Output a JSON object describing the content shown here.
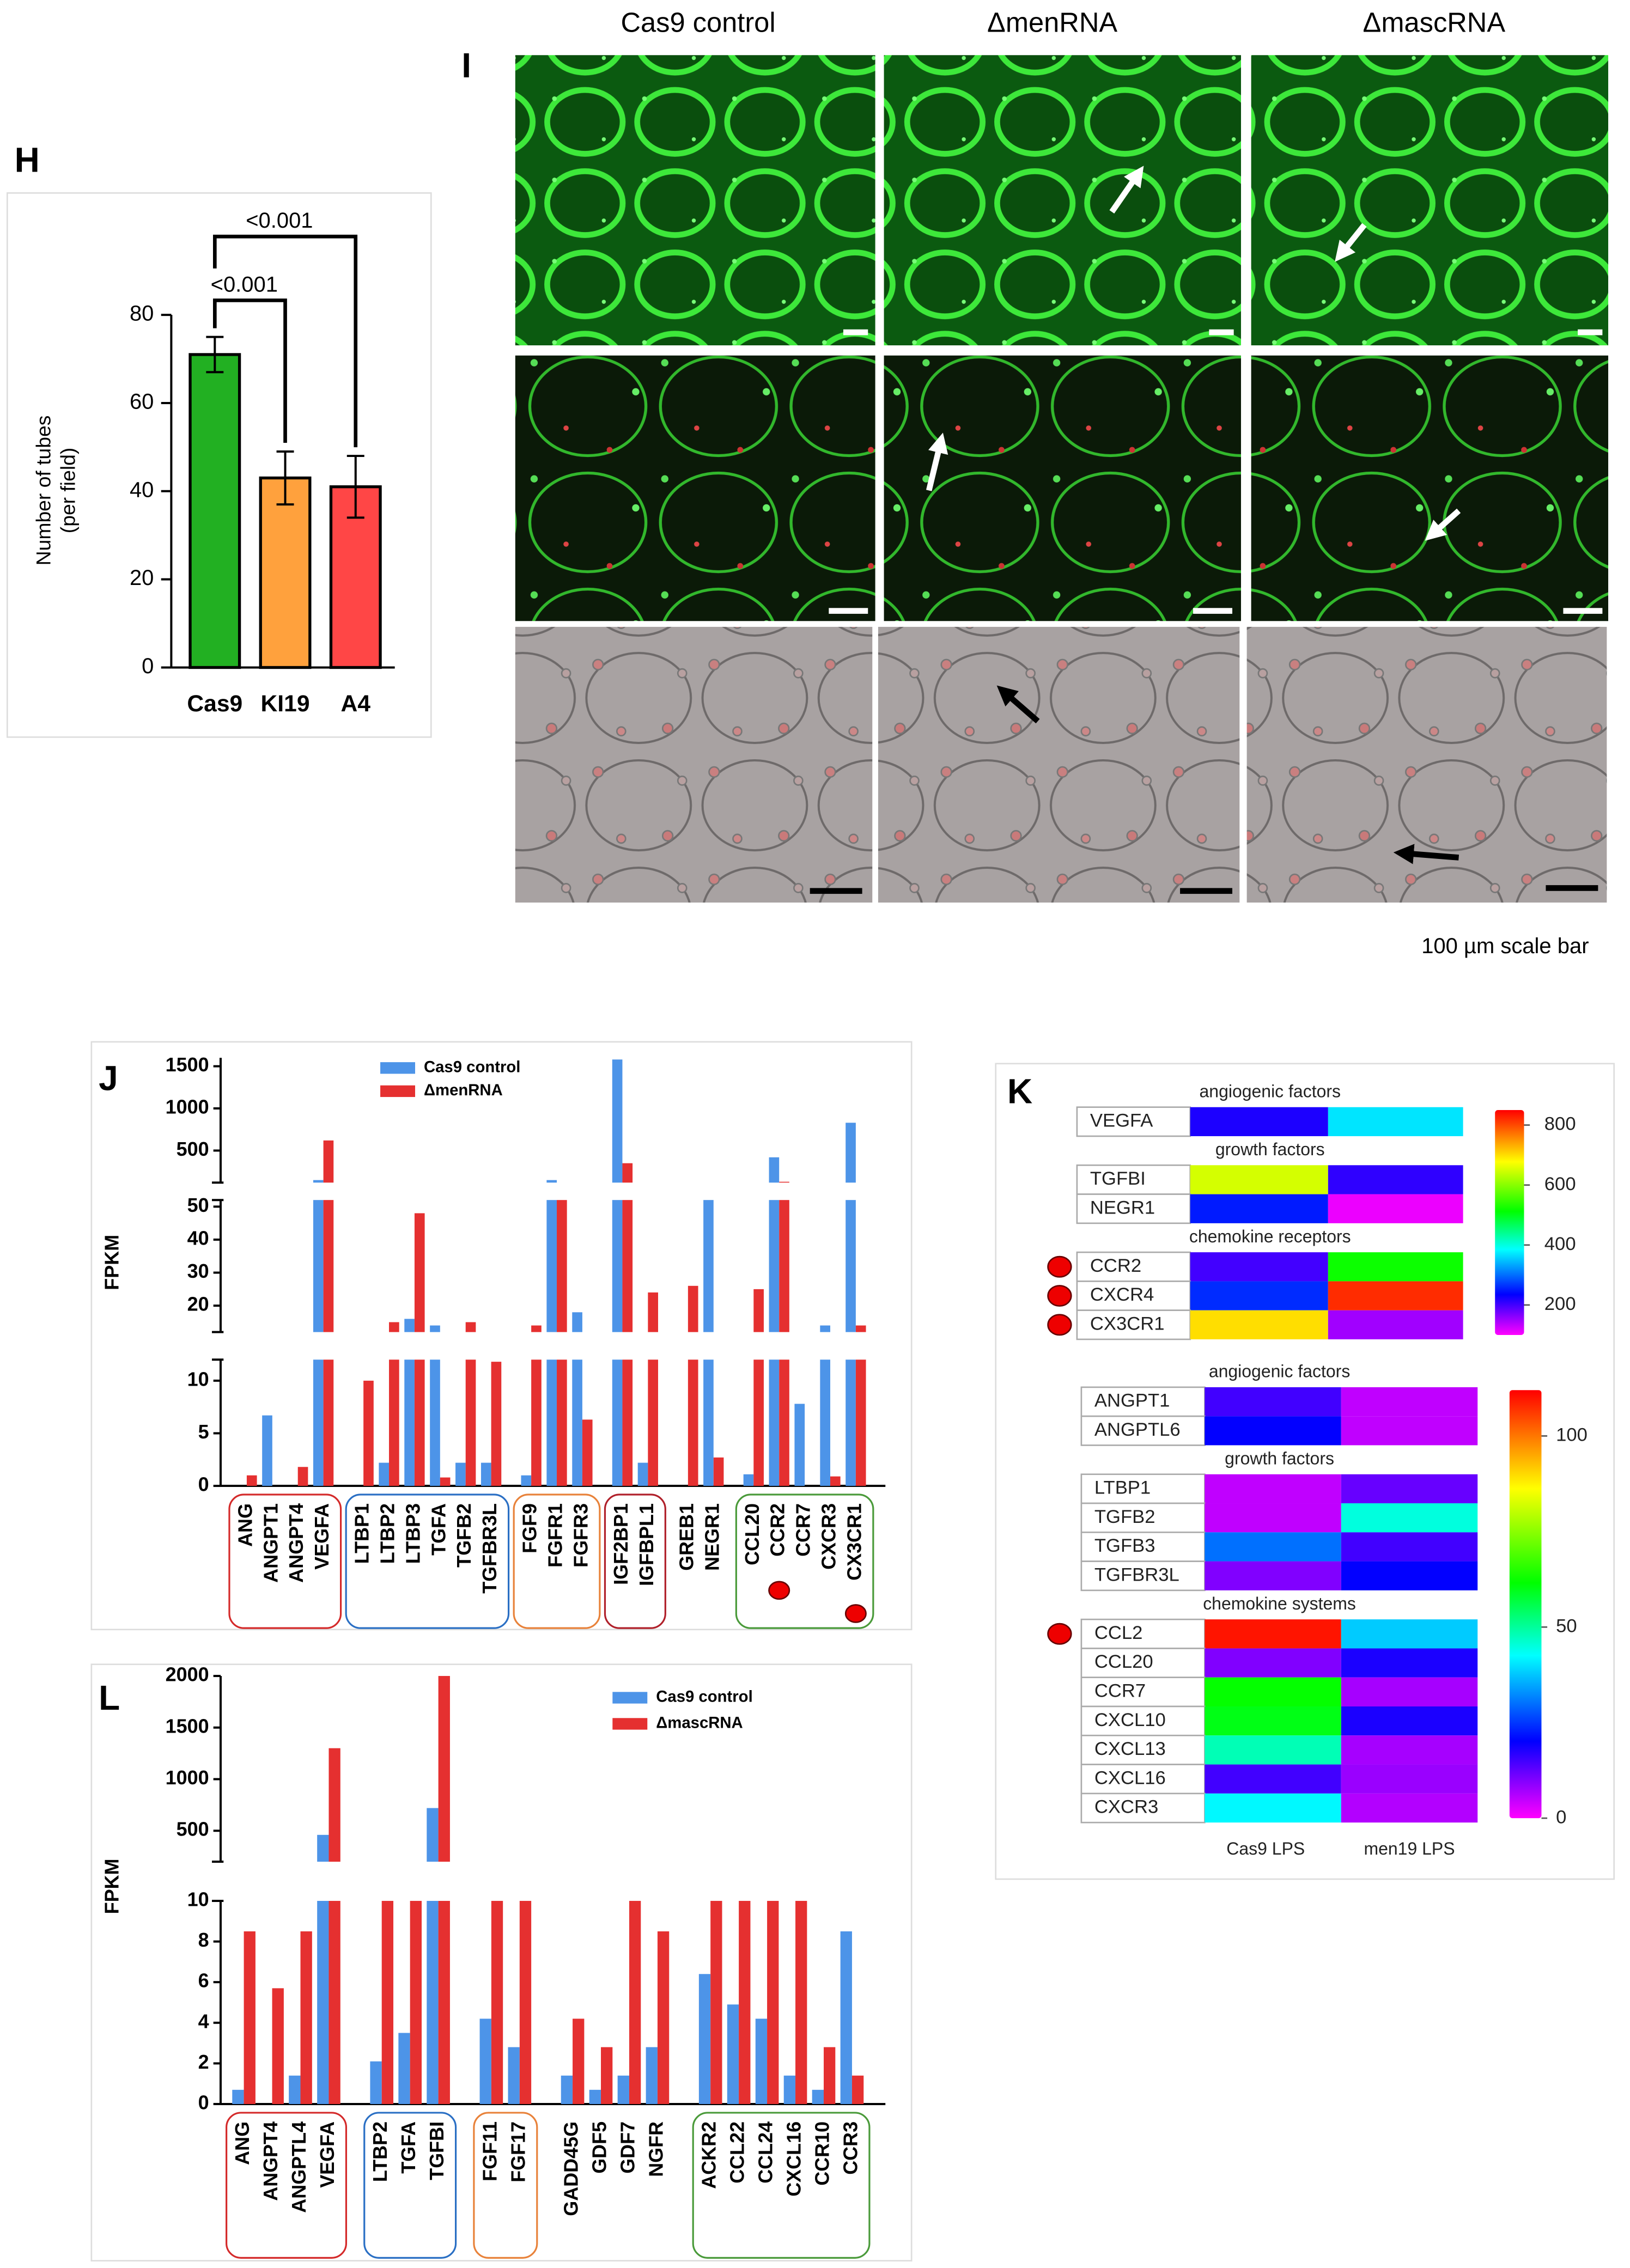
{
  "image_panel": {
    "letter": "I",
    "columns": [
      "Cas9 control",
      "ΔmenRNA",
      "ΔmascRNA"
    ],
    "note": "100 µm scale bar"
  },
  "chart_data": [
    {
      "type": "bar",
      "panel": "H",
      "ylabel": [
        "Number of tubes",
        "(per field)"
      ],
      "categories": [
        "Cas9",
        "KI19",
        "A4"
      ],
      "values": [
        71,
        43,
        41
      ],
      "errors": [
        4,
        6,
        7
      ],
      "colors": [
        "#22b022",
        "#ffa13d",
        "#ff4646"
      ],
      "ylim": [
        0,
        80
      ],
      "yticks": [
        0,
        20,
        40,
        60,
        80
      ],
      "comparisons": [
        {
          "label": "<0.001",
          "between": [
            "Cas9",
            "KI19"
          ]
        },
        {
          "label": "<0.001",
          "between": [
            "Cas9",
            "A4"
          ]
        }
      ]
    },
    {
      "type": "broken_bar",
      "panel": "J",
      "ylabel": "FPKM",
      "categories": [
        "ANG",
        "ANGPT1",
        "ANGPT4",
        "VEGFA",
        "LTBP1",
        "LTBP2",
        "LTBP3",
        "TGFA",
        "TGFB2",
        "TGFBR3L",
        "FGF9",
        "FGFR1",
        "FGFR3",
        "IGF2BP1",
        "IGFBPL1",
        "GREB1",
        "NEGR1",
        "CCL20",
        "CCR2",
        "CCR7",
        "CXCR3",
        "CX3CR1"
      ],
      "series": [
        {
          "name": "Cas9 control",
          "color": "#4d94e8",
          "values": [
            0,
            6.7,
            0,
            150,
            0,
            2.2,
            16,
            14,
            2.2,
            2.2,
            1,
            150,
            18,
            1580,
            2.2,
            0,
            70,
            1.1,
            420,
            7.8,
            14,
            830
          ]
        },
        {
          "name": "ΔmenRNA",
          "color": "#e53030",
          "values": [
            1,
            0,
            1.8,
            620,
            10,
            15,
            48,
            0.8,
            15,
            11.8,
            14,
            70,
            6.3,
            350,
            24,
            26,
            2.7,
            25,
            130,
            0,
            0.9,
            14
          ]
        }
      ],
      "segments": [
        {
          "ylim": [
            0,
            12
          ],
          "yticks": [
            0,
            5,
            10
          ]
        },
        {
          "ylim": [
            12,
            52
          ],
          "yticks": [
            20,
            30,
            40,
            50
          ]
        },
        {
          "ylim": [
            120,
            1600
          ],
          "yticks": [
            500,
            1000,
            1500
          ]
        }
      ]
    },
    {
      "type": "heatmap",
      "panel": "K",
      "columns": [
        "Cas9 LPS",
        "men19 LPS"
      ],
      "heatmaps": [
        {
          "clim": [
            100,
            850
          ],
          "cticks": [
            200,
            400,
            600,
            800
          ],
          "sections": [
            {
              "title": "angiogenic factors",
              "rows": [
                "VEGFA"
              ],
              "values": [
                [
                  220,
                  370
                ]
              ]
            },
            {
              "title": "growth factors",
              "rows": [
                "TGFBI",
                "NEGR1"
              ],
              "values": [
                [
                  650,
                  210
                ],
                [
                  250,
                  110
                ]
              ]
            },
            {
              "title": "chemokine receptors",
              "rows": [
                "CCR2",
                "CXCR4",
                "CX3CR1"
              ],
              "values": [
                [
                  200,
                  520
                ],
                [
                  260,
                  820
                ],
                [
                  700,
                  150
                ]
              ]
            }
          ]
        },
        {
          "clim": [
            0,
            112
          ],
          "cticks": [
            0,
            50,
            100
          ],
          "sections": [
            {
              "title": "angiogenic factors",
              "rows": [
                "ANGPT1",
                "ANGPTL6"
              ],
              "values": [
                [
                  15,
                  5
                ],
                [
                  20,
                  5
                ]
              ]
            },
            {
              "title": "growth factors",
              "rows": [
                "LTBP1",
                "TGFB2",
                "TGFB3",
                "TGFBR3L"
              ],
              "values": [
                [
                  5,
                  12
                ],
                [
                  5,
                  45
                ],
                [
                  30,
                  15
                ],
                [
                  10,
                  20
                ]
              ]
            },
            {
              "title": "chemokine systems",
              "rows": [
                "CCL2",
                "CCL20",
                "CCR7",
                "CXCL10",
                "CXCL13",
                "CXCL16",
                "CXCR3"
              ],
              "values": [
                [
                  110,
                  38
                ],
                [
                  10,
                  18
                ],
                [
                  62,
                  7
                ],
                [
                  60,
                  18
                ],
                [
                  48,
                  7
                ],
                [
                  15,
                  8
                ],
                [
                  42,
                  6
                ]
              ]
            }
          ]
        }
      ]
    },
    {
      "type": "broken_bar",
      "panel": "L",
      "ylabel": "FPKM",
      "categories": [
        "ANG",
        "ANGPT4",
        "ANGPTL4",
        "VEGFA",
        "LTBP2",
        "TGFA",
        "TGFBI",
        "FGF11",
        "FGF17",
        "GADD45G",
        "GDF5",
        "GDF7",
        "NGFR",
        "ACKR2",
        "CCL22",
        "CCL24",
        "CXCL16",
        "CCR10",
        "CCR3"
      ],
      "series": [
        {
          "name": "Cas9 control",
          "color": "#4d94e8",
          "values": [
            0.7,
            0,
            1.4,
            460,
            2.1,
            3.5,
            720,
            4.2,
            2.8,
            1.4,
            0.7,
            1.4,
            2.8,
            6.4,
            4.9,
            4.2,
            1.4,
            0.7,
            8.5
          ]
        },
        {
          "name": "ΔmascRNA",
          "color": "#e53030",
          "values": [
            8.5,
            5.7,
            8.5,
            1300,
            10,
            10,
            2000,
            10,
            10,
            4.2,
            2.8,
            10,
            8.5,
            10,
            10,
            10,
            10,
            2.8,
            1.4
          ]
        }
      ],
      "segments": [
        {
          "ylim": [
            0,
            10
          ],
          "yticks": [
            0,
            2,
            4,
            6,
            8,
            10
          ]
        },
        {
          "ylim": [
            200,
            2000
          ],
          "yticks": [
            500,
            1000,
            1500,
            2000
          ]
        }
      ]
    }
  ]
}
